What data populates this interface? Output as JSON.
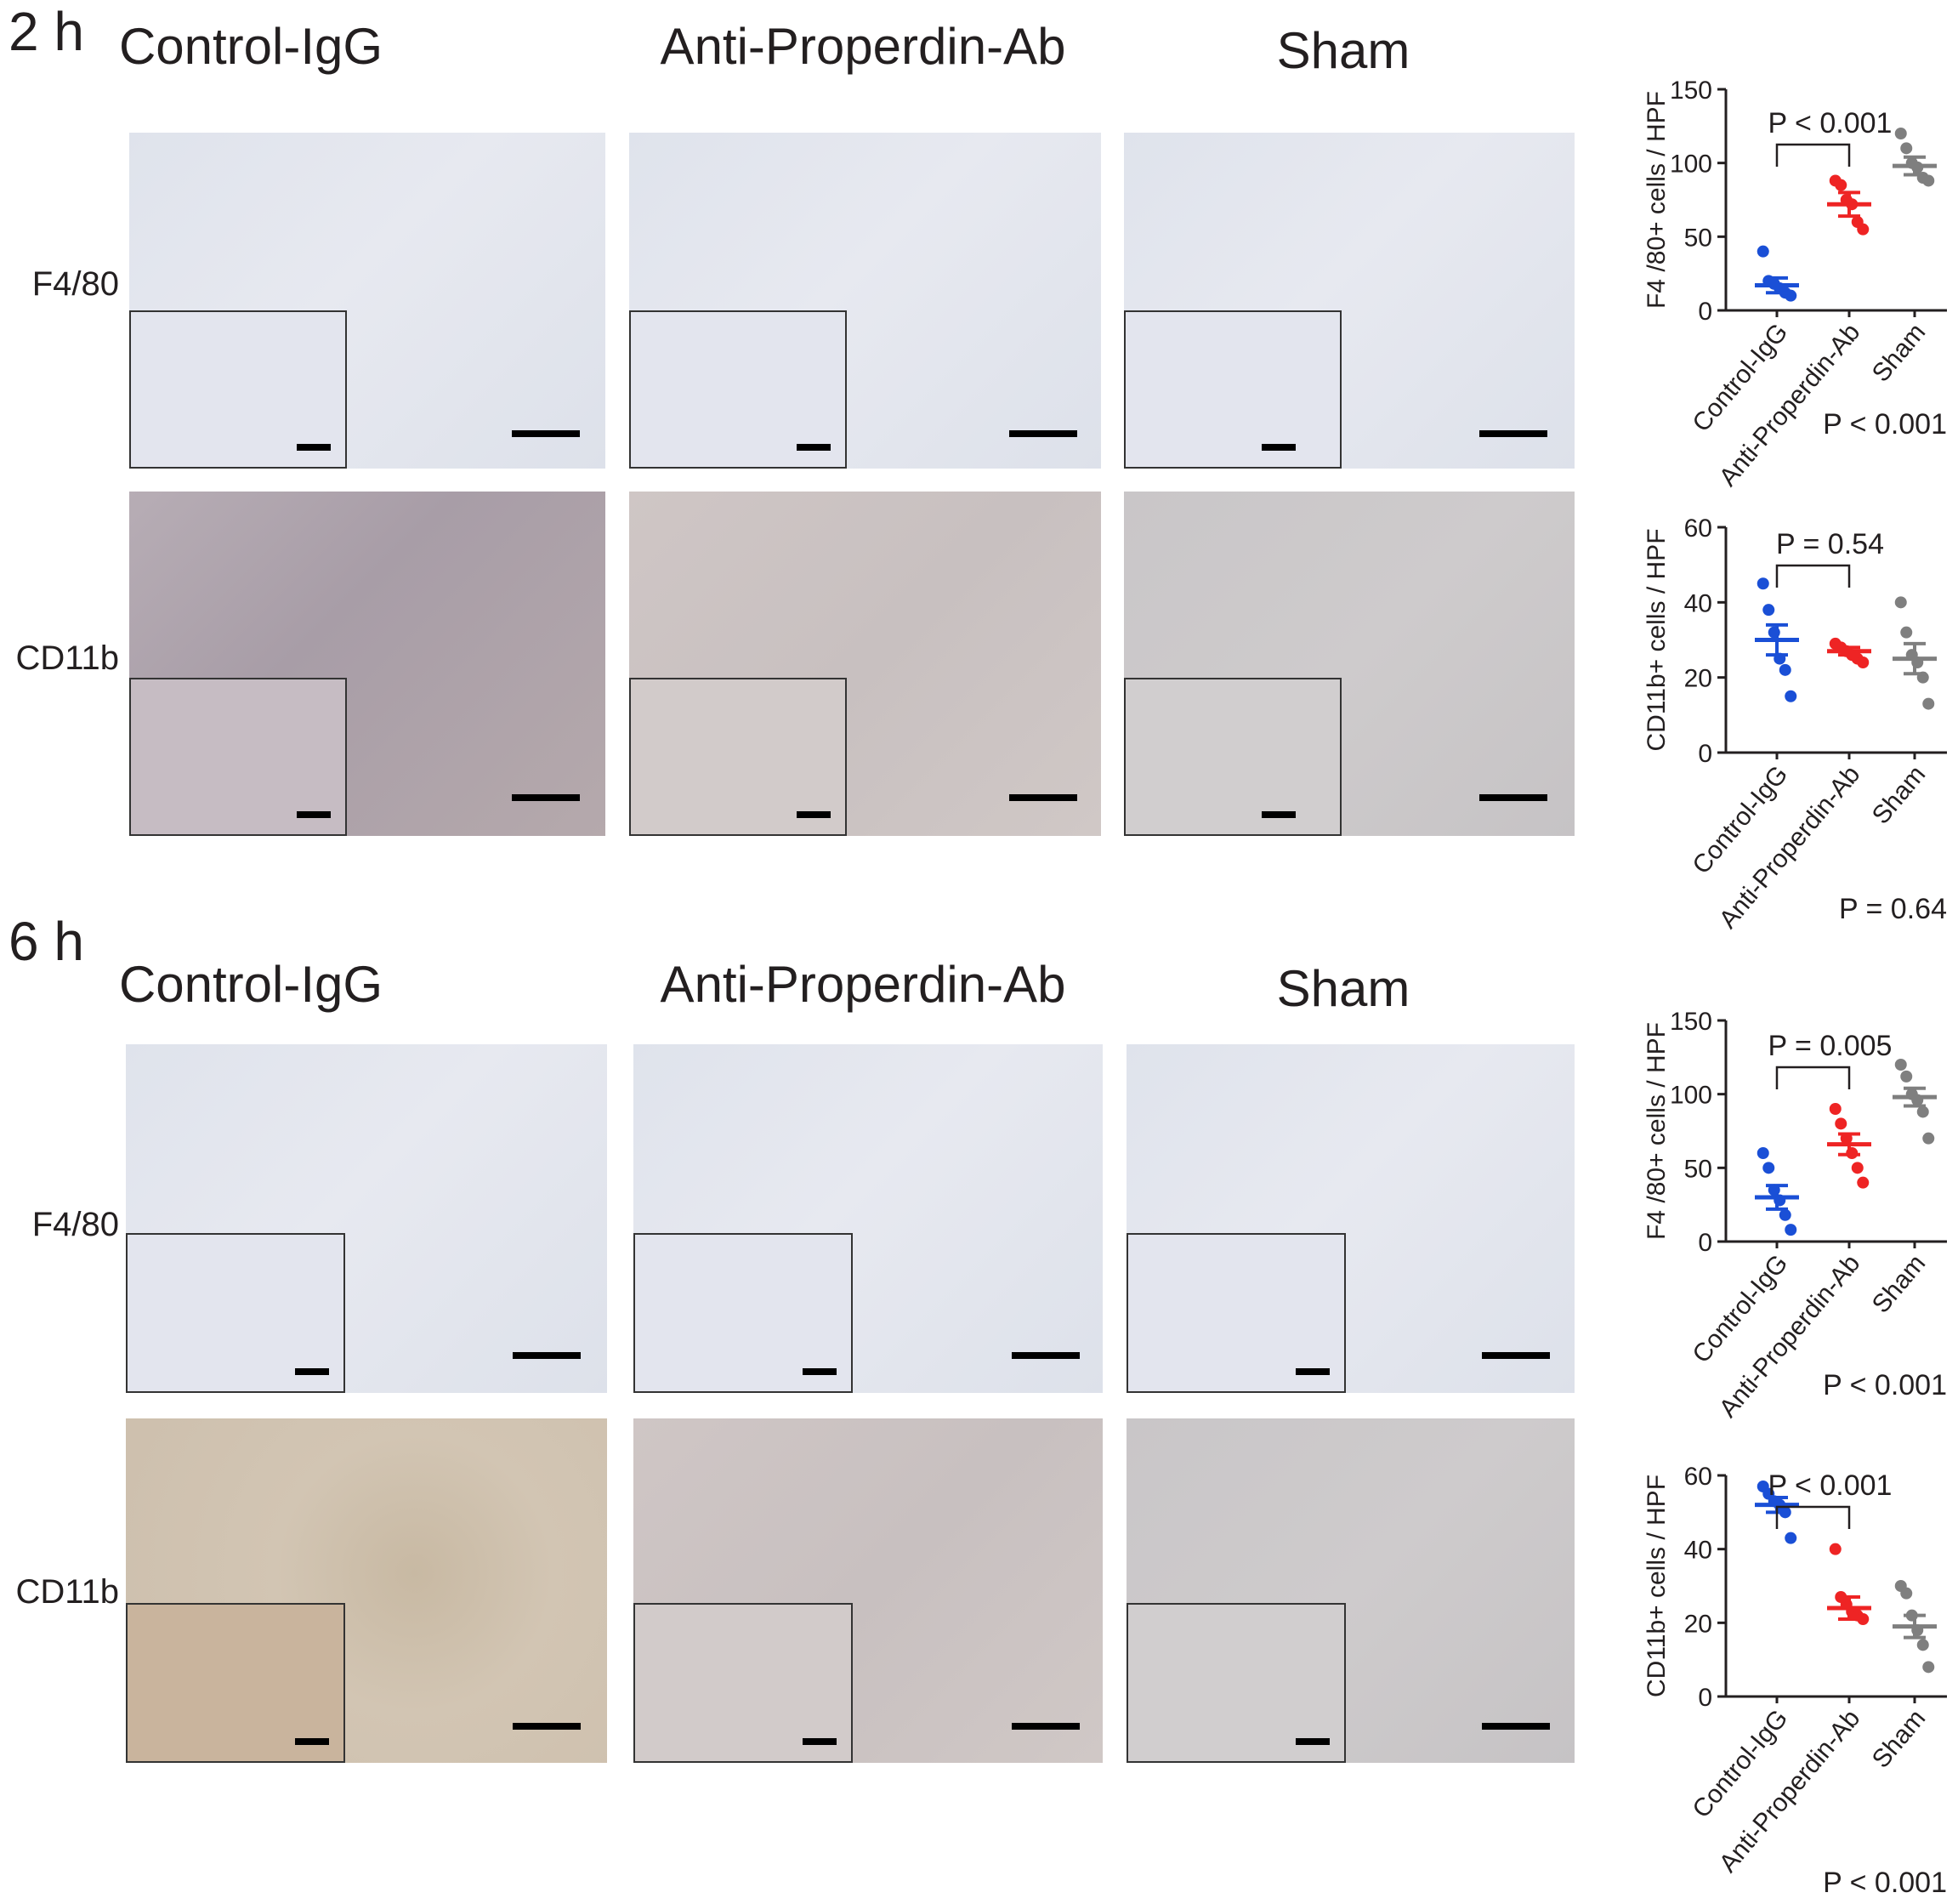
{
  "timepoints": [
    {
      "label": "2 h",
      "columns": [
        "Control-IgG",
        "Anti-Properdin-Ab",
        "Sham"
      ],
      "rows": [
        "F4/80",
        "CD11b"
      ]
    },
    {
      "label": "6 h",
      "columns": [
        "Control-IgG",
        "Anti-Properdin-Ab",
        "Sham"
      ],
      "rows": [
        "F4/80",
        "CD11b"
      ]
    }
  ],
  "colors": {
    "control": "#1a4fd6",
    "anti": "#ee2424",
    "sham": "#7f7f7f",
    "text": "#231f20"
  },
  "chart_data": [
    {
      "type": "scatter",
      "ylabel": "F4 /80+ cells / HPF",
      "categories": [
        "Control-IgG",
        "Anti-Properdin-Ab",
        "Sham"
      ],
      "yticks": [
        0,
        50,
        100,
        150
      ],
      "ylim": [
        0,
        150
      ],
      "series": [
        {
          "name": "Control-IgG",
          "points": [
            40,
            20,
            18,
            15,
            12,
            10
          ],
          "mean": 17,
          "sem": 5
        },
        {
          "name": "Anti-Properdin-Ab",
          "points": [
            88,
            85,
            75,
            72,
            60,
            55
          ],
          "mean": 72,
          "sem": 8
        },
        {
          "name": "Sham",
          "points": [
            120,
            110,
            100,
            97,
            90,
            88
          ],
          "mean": 98,
          "sem": 6
        }
      ],
      "bracket_label": "P < 0.001",
      "overall_label": "P < 0.001"
    },
    {
      "type": "scatter",
      "ylabel": "CD11b+ cells / HPF",
      "categories": [
        "Control-IgG",
        "Anti-Properdin-Ab",
        "Sham"
      ],
      "yticks": [
        0,
        20,
        40,
        60
      ],
      "ylim": [
        0,
        60
      ],
      "series": [
        {
          "name": "Control-IgG",
          "points": [
            45,
            38,
            32,
            25,
            22,
            15
          ],
          "mean": 30,
          "sem": 4
        },
        {
          "name": "Anti-Properdin-Ab",
          "points": [
            29,
            28,
            27,
            26,
            25,
            24
          ],
          "mean": 27,
          "sem": 1
        },
        {
          "name": "Sham",
          "points": [
            40,
            32,
            26,
            24,
            20,
            13
          ],
          "mean": 25,
          "sem": 4
        }
      ],
      "bracket_label": "P = 0.54",
      "overall_label": "P = 0.64"
    },
    {
      "type": "scatter",
      "ylabel": "F4 /80+ cells / HPF",
      "categories": [
        "Control-IgG",
        "Anti-Properdin-Ab",
        "Sham"
      ],
      "yticks": [
        0,
        50,
        100,
        150
      ],
      "ylim": [
        0,
        150
      ],
      "series": [
        {
          "name": "Control-IgG",
          "points": [
            60,
            50,
            35,
            28,
            18,
            8
          ],
          "mean": 30,
          "sem": 8
        },
        {
          "name": "Anti-Properdin-Ab",
          "points": [
            90,
            80,
            70,
            60,
            50,
            40
          ],
          "mean": 66,
          "sem": 7
        },
        {
          "name": "Sham",
          "points": [
            120,
            112,
            100,
            96,
            88,
            70
          ],
          "mean": 98,
          "sem": 6
        }
      ],
      "bracket_label": "P = 0.005",
      "overall_label": "P < 0.001"
    },
    {
      "type": "scatter",
      "ylabel": "CD11b+ cells / HPF",
      "categories": [
        "Control-IgG",
        "Anti-Properdin-Ab",
        "Sham"
      ],
      "yticks": [
        0,
        20,
        40,
        60
      ],
      "ylim": [
        0,
        60
      ],
      "series": [
        {
          "name": "Control-IgG",
          "points": [
            57,
            55,
            53,
            52,
            50,
            43
          ],
          "mean": 52,
          "sem": 2
        },
        {
          "name": "Anti-Properdin-Ab",
          "points": [
            40,
            27,
            25,
            23,
            22,
            21
          ],
          "mean": 24,
          "sem": 3
        },
        {
          "name": "Sham",
          "points": [
            30,
            28,
            22,
            18,
            14,
            8
          ],
          "mean": 19,
          "sem": 3
        }
      ],
      "bracket_label": "P < 0.001",
      "overall_label": "P < 0.001"
    }
  ]
}
